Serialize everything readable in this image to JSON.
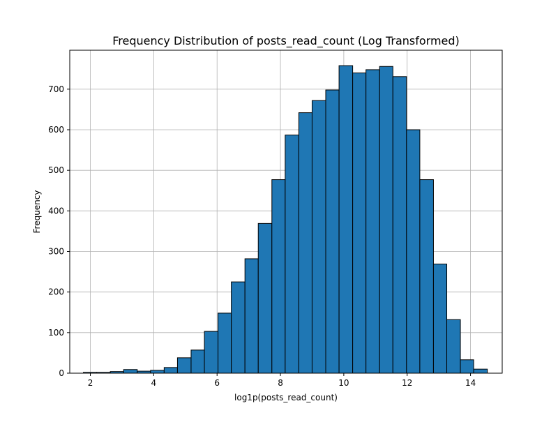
{
  "chart_data": {
    "type": "bar",
    "title": "Frequency Distribution of posts_read_count (Log Transformed)",
    "xlabel": "log1p(posts_read_count)",
    "ylabel": "Frequency",
    "xlim": [
      1.35,
      15.0
    ],
    "ylim": [
      0,
      796
    ],
    "grid": true,
    "bar_color": "#1f77b4",
    "edge_color": "#000000",
    "xticks": [
      2,
      4,
      6,
      8,
      10,
      12,
      14
    ],
    "yticks": [
      0,
      100,
      200,
      300,
      400,
      500,
      600,
      700
    ],
    "bin_edges": [
      1.78,
      2.2,
      2.63,
      3.05,
      3.48,
      3.9,
      4.33,
      4.75,
      5.18,
      5.6,
      6.03,
      6.45,
      6.88,
      7.3,
      7.73,
      8.15,
      8.58,
      9.0,
      9.43,
      9.85,
      10.28,
      10.7,
      11.13,
      11.55,
      11.98,
      12.4,
      12.83,
      13.25,
      13.68,
      14.1,
      14.53
    ],
    "values": [
      2,
      2,
      4,
      9,
      5,
      7,
      14,
      38,
      57,
      103,
      148,
      225,
      282,
      369,
      477,
      587,
      642,
      672,
      698,
      758,
      740,
      748,
      756,
      731,
      600,
      477,
      269,
      132,
      33,
      10
    ]
  }
}
